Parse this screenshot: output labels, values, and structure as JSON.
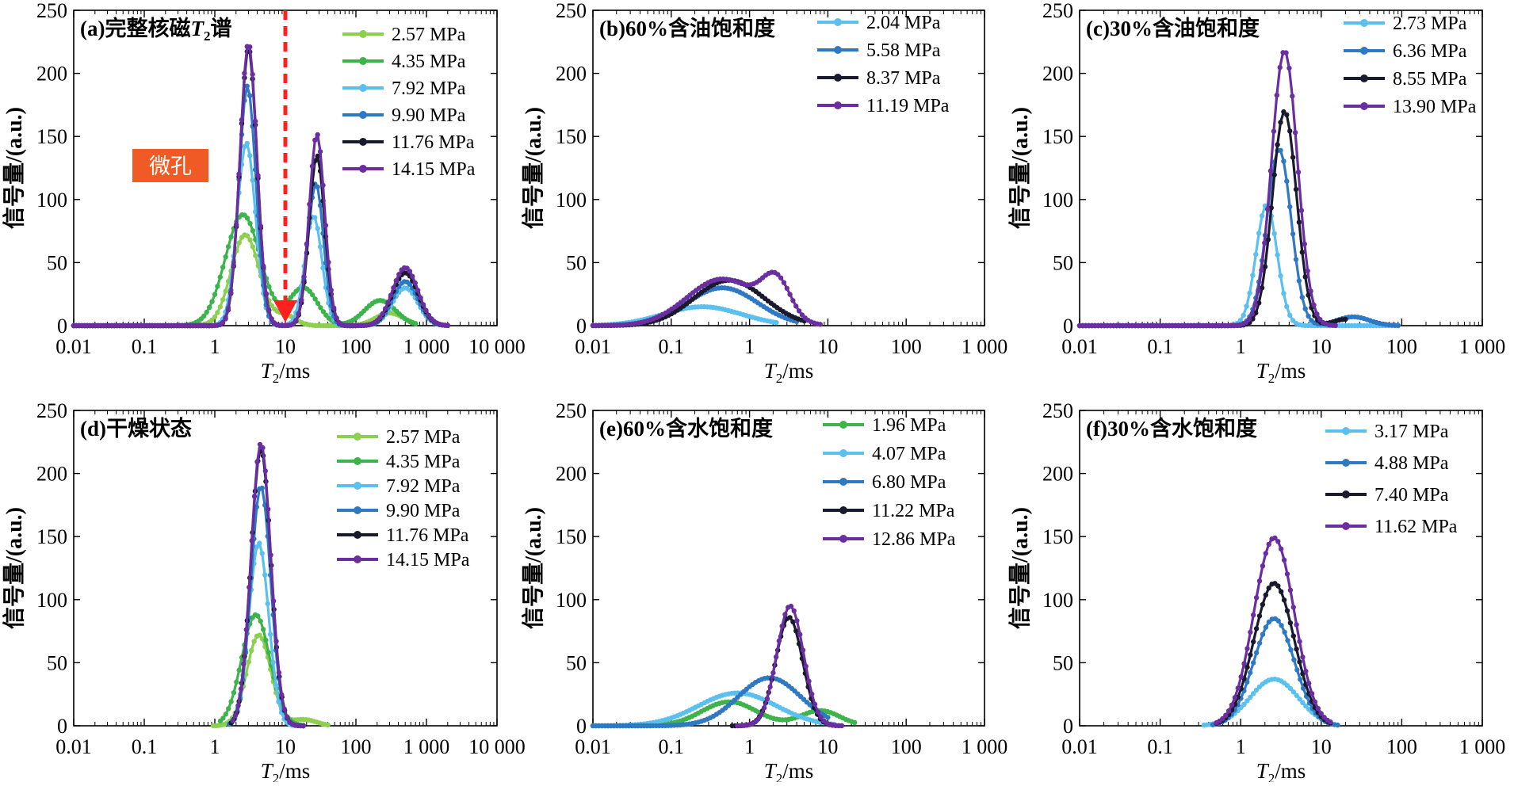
{
  "chart_data": [
    {
      "type": "line",
      "panel_label": "(a)完整核磁",
      "title_symbol": "T",
      "title_subscript": "2",
      "title_suffix": "谱",
      "xlabel_symbol": "T",
      "xlabel_subscript": "2",
      "xlabel_unit": "/ms",
      "ylabel": "信号量/(a.u.)",
      "x_scale": "log",
      "xlim": [
        0.01,
        10000
      ],
      "ylim": [
        0,
        250
      ],
      "x_ticks": [
        0.01,
        0.1,
        1,
        10,
        100,
        1000,
        10000
      ],
      "x_tick_labels": [
        "0.01",
        "0.1",
        "1",
        "10",
        "100",
        "1 000",
        "10 000"
      ],
      "y_ticks": [
        0,
        50,
        100,
        150,
        200,
        250
      ],
      "y_tick_labels": [
        "0",
        "50",
        "100",
        "150",
        "200",
        "250"
      ],
      "legend_position": "top-right",
      "annotations": [
        {
          "text": "微孔",
          "box_color": "#f05a24",
          "text_color": "#ffffff"
        },
        {
          "type": "dashed-arrow",
          "x": 10,
          "color": "#ff2020"
        }
      ],
      "series": [
        {
          "name": "2.57 MPa",
          "color": "#8dd04f",
          "peaks": [
            {
              "x": 2.7,
              "y": 72,
              "w": 0.2
            },
            {
              "x": 10,
              "y": 8,
              "w": 0.15
            },
            {
              "x": 300,
              "y": 10,
              "w": 0.2
            }
          ],
          "x_range": [
            0.01,
            700
          ]
        },
        {
          "name": "4.35 MPa",
          "color": "#3cb44b",
          "peaks": [
            {
              "x": 2.5,
              "y": 88,
              "w": 0.25
            },
            {
              "x": 18,
              "y": 30,
              "w": 0.2
            },
            {
              "x": 220,
              "y": 20,
              "w": 0.22
            }
          ],
          "x_range": [
            0.01,
            700
          ]
        },
        {
          "name": "7.92 MPa",
          "color": "#5bc0ee",
          "peaks": [
            {
              "x": 2.8,
              "y": 145,
              "w": 0.13
            },
            {
              "x": 25,
              "y": 87,
              "w": 0.12
            },
            {
              "x": 500,
              "y": 30,
              "w": 0.18
            }
          ],
          "x_range": [
            0.01,
            2000
          ]
        },
        {
          "name": "9.90 MPa",
          "color": "#2f78c4",
          "peaks": [
            {
              "x": 2.9,
              "y": 190,
              "w": 0.12
            },
            {
              "x": 27,
              "y": 113,
              "w": 0.11
            },
            {
              "x": 500,
              "y": 35,
              "w": 0.18
            }
          ],
          "x_range": [
            0.01,
            2000
          ]
        },
        {
          "name": "11.76 MPa",
          "color": "#1a1a2e",
          "peaks": [
            {
              "x": 3.0,
              "y": 220,
              "w": 0.12
            },
            {
              "x": 28,
              "y": 135,
              "w": 0.11
            },
            {
              "x": 500,
              "y": 42,
              "w": 0.18
            }
          ],
          "x_range": [
            0.01,
            2000
          ]
        },
        {
          "name": "14.15 MPa",
          "color": "#6a2ea0",
          "peaks": [
            {
              "x": 3.0,
              "y": 224,
              "w": 0.12
            },
            {
              "x": 28,
              "y": 152,
              "w": 0.11
            },
            {
              "x": 500,
              "y": 46,
              "w": 0.18
            }
          ],
          "x_range": [
            0.01,
            2000
          ]
        }
      ]
    },
    {
      "type": "line",
      "panel_label": "(b)60%含油饱和度",
      "xlabel_symbol": "T",
      "xlabel_subscript": "2",
      "xlabel_unit": "/ms",
      "ylabel": "信号量/(a.u.)",
      "x_scale": "log",
      "xlim": [
        0.01,
        1000
      ],
      "ylim": [
        0,
        250
      ],
      "x_ticks": [
        0.01,
        0.1,
        1,
        10,
        100,
        1000
      ],
      "x_tick_labels": [
        "0.01",
        "0.1",
        "1",
        "10",
        "100",
        "1 000"
      ],
      "y_ticks": [
        0,
        50,
        100,
        150,
        200,
        250
      ],
      "y_tick_labels": [
        "0",
        "50",
        "100",
        "150",
        "200",
        "250"
      ],
      "legend_position": "top-right",
      "series": [
        {
          "name": "2.04 MPa",
          "color": "#5bc0ee",
          "peaks": [
            {
              "x": 0.25,
              "y": 15,
              "w": 0.5
            }
          ],
          "x_range": [
            0.01,
            2.2
          ]
        },
        {
          "name": "5.58 MPa",
          "color": "#2f78c4",
          "peaks": [
            {
              "x": 0.45,
              "y": 30,
              "w": 0.45
            }
          ],
          "x_range": [
            0.01,
            4
          ]
        },
        {
          "name": "8.37 MPa",
          "color": "#1a1a2e",
          "peaks": [
            {
              "x": 0.55,
              "y": 36,
              "w": 0.45
            }
          ],
          "x_range": [
            0.01,
            5
          ]
        },
        {
          "name": "11.19 MPa",
          "color": "#6a2ea0",
          "peaks": [
            {
              "x": 0.45,
              "y": 37,
              "w": 0.45
            },
            {
              "x": 2.2,
              "y": 30,
              "w": 0.18
            }
          ],
          "x_range": [
            0.01,
            8
          ]
        }
      ]
    },
    {
      "type": "line",
      "panel_label": "(c)30%含油饱和度",
      "xlabel_symbol": "T",
      "xlabel_subscript": "2",
      "xlabel_unit": "/ms",
      "ylabel": "信号量/(a.u.)",
      "x_scale": "log",
      "xlim": [
        0.01,
        1000
      ],
      "ylim": [
        0,
        250
      ],
      "x_ticks": [
        0.01,
        0.1,
        1,
        10,
        100,
        1000
      ],
      "x_tick_labels": [
        "0.01",
        "0.1",
        "1",
        "10",
        "100",
        "1 000"
      ],
      "y_ticks": [
        0,
        50,
        100,
        150,
        200,
        250
      ],
      "y_tick_labels": [
        "0",
        "50",
        "100",
        "150",
        "200",
        "250"
      ],
      "legend_position": "top-right",
      "series": [
        {
          "name": "2.73 MPa",
          "color": "#5bc0ee",
          "peaks": [
            {
              "x": 2.1,
              "y": 96,
              "w": 0.13
            }
          ],
          "x_range": [
            0.01,
            90
          ]
        },
        {
          "name": "6.36 MPa",
          "color": "#2f78c4",
          "peaks": [
            {
              "x": 3.0,
              "y": 140,
              "w": 0.15
            },
            {
              "x": 25,
              "y": 7,
              "w": 0.2
            }
          ],
          "x_range": [
            0.01,
            90
          ]
        },
        {
          "name": "8.55 MPa",
          "color": "#1a1a2e",
          "peaks": [
            {
              "x": 3.5,
              "y": 170,
              "w": 0.15
            },
            {
              "x": 20,
              "y": 5,
              "w": 0.15
            }
          ],
          "x_range": [
            0.01,
            20
          ]
        },
        {
          "name": "13.90 MPa",
          "color": "#6a2ea0",
          "peaks": [
            {
              "x": 3.5,
              "y": 218,
              "w": 0.16
            }
          ],
          "x_range": [
            0.01,
            15
          ]
        }
      ]
    },
    {
      "type": "line",
      "panel_label": "(d)干燥状态",
      "xlabel_symbol": "T",
      "xlabel_subscript": "2",
      "xlabel_unit": "/ms",
      "ylabel": "信号量/(a.u.)",
      "x_scale": "log",
      "xlim": [
        0.01,
        10000
      ],
      "ylim": [
        0,
        250
      ],
      "x_ticks": [
        0.01,
        0.1,
        1,
        10,
        100,
        1000,
        10000
      ],
      "x_tick_labels": [
        "0.01",
        "0.1",
        "1",
        "10",
        "100",
        "1 000",
        "10 000"
      ],
      "y_ticks": [
        0,
        50,
        100,
        150,
        200,
        250
      ],
      "y_tick_labels": [
        "0",
        "50",
        "100",
        "150",
        "200",
        "250"
      ],
      "legend_position": "top-right",
      "series": [
        {
          "name": "2.57 MPa",
          "color": "#8dd04f",
          "peaks": [
            {
              "x": 4.2,
              "y": 72,
              "w": 0.17
            },
            {
              "x": 18,
              "y": 5,
              "w": 0.18
            }
          ],
          "x_range": [
            0.95,
            40
          ]
        },
        {
          "name": "4.35 MPa",
          "color": "#3cb44b",
          "peaks": [
            {
              "x": 3.8,
              "y": 88,
              "w": 0.2
            }
          ],
          "x_range": [
            1.2,
            18
          ]
        },
        {
          "name": "7.92 MPa",
          "color": "#5bc0ee",
          "peaks": [
            {
              "x": 4.2,
              "y": 145,
              "w": 0.14
            }
          ],
          "x_range": [
            1.6,
            18
          ]
        },
        {
          "name": "9.90 MPa",
          "color": "#2f78c4",
          "peaks": [
            {
              "x": 4.5,
              "y": 190,
              "w": 0.14
            }
          ],
          "x_range": [
            1.6,
            18
          ]
        },
        {
          "name": "11.76 MPa",
          "color": "#1a1a2e",
          "peaks": [
            {
              "x": 4.5,
              "y": 220,
              "w": 0.14
            }
          ],
          "x_range": [
            1.7,
            18
          ]
        },
        {
          "name": "14.15 MPa",
          "color": "#6a2ea0",
          "peaks": [
            {
              "x": 4.5,
              "y": 224,
              "w": 0.14
            }
          ],
          "x_range": [
            1.8,
            18
          ]
        }
      ]
    },
    {
      "type": "line",
      "panel_label": "(e)60%含水饱和度",
      "xlabel_symbol": "T",
      "xlabel_subscript": "2",
      "xlabel_unit": "/ms",
      "ylabel": "信号量/(a.u.)",
      "x_scale": "log",
      "xlim": [
        0.01,
        1000
      ],
      "ylim": [
        0,
        250
      ],
      "x_ticks": [
        0.01,
        0.1,
        1,
        10,
        100,
        1000
      ],
      "x_tick_labels": [
        "0.01",
        "0.1",
        "1",
        "10",
        "100",
        "1 000"
      ],
      "y_ticks": [
        0,
        50,
        100,
        150,
        200,
        250
      ],
      "y_tick_labels": [
        "0",
        "50",
        "100",
        "150",
        "200",
        "250"
      ],
      "legend_position": "top-left",
      "series": [
        {
          "name": "1.96 MPa",
          "color": "#3cb44b",
          "peaks": [
            {
              "x": 0.55,
              "y": 19,
              "w": 0.35
            },
            {
              "x": 8,
              "y": 12,
              "w": 0.25
            }
          ],
          "x_range": [
            0.01,
            22
          ]
        },
        {
          "name": "4.07 MPa",
          "color": "#5bc0ee",
          "peaks": [
            {
              "x": 0.7,
              "y": 26,
              "w": 0.5
            }
          ],
          "x_range": [
            0.01,
            12
          ]
        },
        {
          "name": "6.80 MPa",
          "color": "#2f78c4",
          "peaks": [
            {
              "x": 1.8,
              "y": 38,
              "w": 0.4
            }
          ],
          "x_range": [
            0.01,
            10
          ]
        },
        {
          "name": "11.22 MPa",
          "color": "#1a1a2e",
          "peaks": [
            {
              "x": 3.2,
              "y": 86,
              "w": 0.17
            }
          ],
          "x_range": [
            0.6,
            15
          ]
        },
        {
          "name": "12.86 MPa",
          "color": "#6a2ea0",
          "peaks": [
            {
              "x": 3.3,
              "y": 95,
              "w": 0.17
            }
          ],
          "x_range": [
            0.7,
            15
          ]
        }
      ]
    },
    {
      "type": "line",
      "panel_label": "(f)30%含水饱和度",
      "xlabel_symbol": "T",
      "xlabel_subscript": "2",
      "xlabel_unit": "/ms",
      "ylabel": "信号量/(a.u.)",
      "x_scale": "log",
      "xlim": [
        0.01,
        1000
      ],
      "ylim": [
        0,
        250
      ],
      "x_ticks": [
        0.01,
        0.1,
        1,
        10,
        100,
        1000
      ],
      "x_tick_labels": [
        "0.01",
        "0.1",
        "1",
        "10",
        "100",
        "1 000"
      ],
      "y_ticks": [
        0,
        50,
        100,
        150,
        200,
        250
      ],
      "y_tick_labels": [
        "0",
        "50",
        "100",
        "150",
        "200",
        "250"
      ],
      "legend_position": "top-right",
      "series": [
        {
          "name": "3.17 MPa",
          "color": "#5bc0ee",
          "peaks": [
            {
              "x": 2.6,
              "y": 37,
              "w": 0.3
            }
          ],
          "x_range": [
            0.35,
            10
          ]
        },
        {
          "name": "4.88 MPa",
          "color": "#2f78c4",
          "peaks": [
            {
              "x": 2.6,
              "y": 85,
              "w": 0.25
            }
          ],
          "x_range": [
            0.45,
            16
          ]
        },
        {
          "name": "7.40 MPa",
          "color": "#1a1a2e",
          "peaks": [
            {
              "x": 2.6,
              "y": 113,
              "w": 0.25
            }
          ],
          "x_range": [
            0.5,
            13
          ]
        },
        {
          "name": "11.62 MPa",
          "color": "#6a2ea0",
          "peaks": [
            {
              "x": 2.6,
              "y": 149,
              "w": 0.25
            }
          ],
          "x_range": [
            0.5,
            13
          ]
        }
      ]
    }
  ]
}
